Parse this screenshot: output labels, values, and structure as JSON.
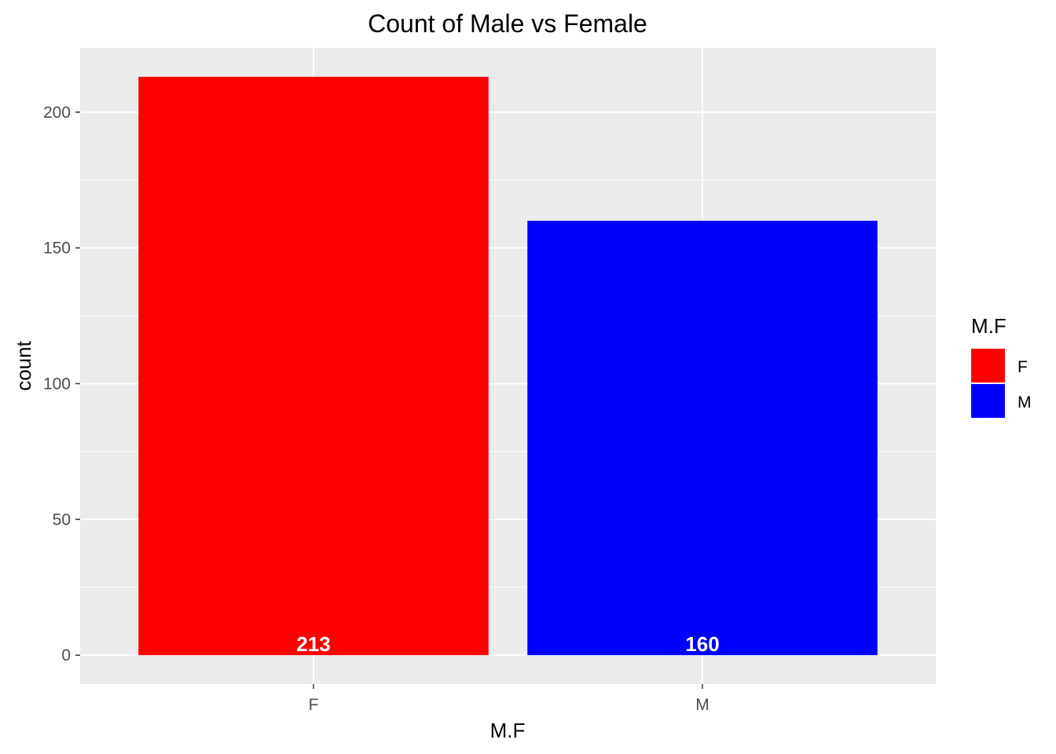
{
  "chart_data": {
    "type": "bar",
    "title": "Count of Male vs Female",
    "xlabel": "M.F",
    "ylabel": "count",
    "categories": [
      "F",
      "M"
    ],
    "values": [
      213,
      160
    ],
    "data_labels": [
      "213",
      "160"
    ],
    "colors": [
      "#ff0000",
      "#0000ff"
    ],
    "ylim": [
      -10.65,
      223.65
    ],
    "yticks": [
      0,
      50,
      100,
      150,
      200
    ],
    "ytick_labels": [
      "0",
      "50",
      "100",
      "150",
      "200"
    ],
    "grid": true,
    "panel_background": "#ebebeb",
    "legend": {
      "title": "M.F",
      "placement": "right",
      "entries": [
        {
          "label": "F",
          "color": "#ff0000"
        },
        {
          "label": "M",
          "color": "#0000ff"
        }
      ]
    }
  }
}
